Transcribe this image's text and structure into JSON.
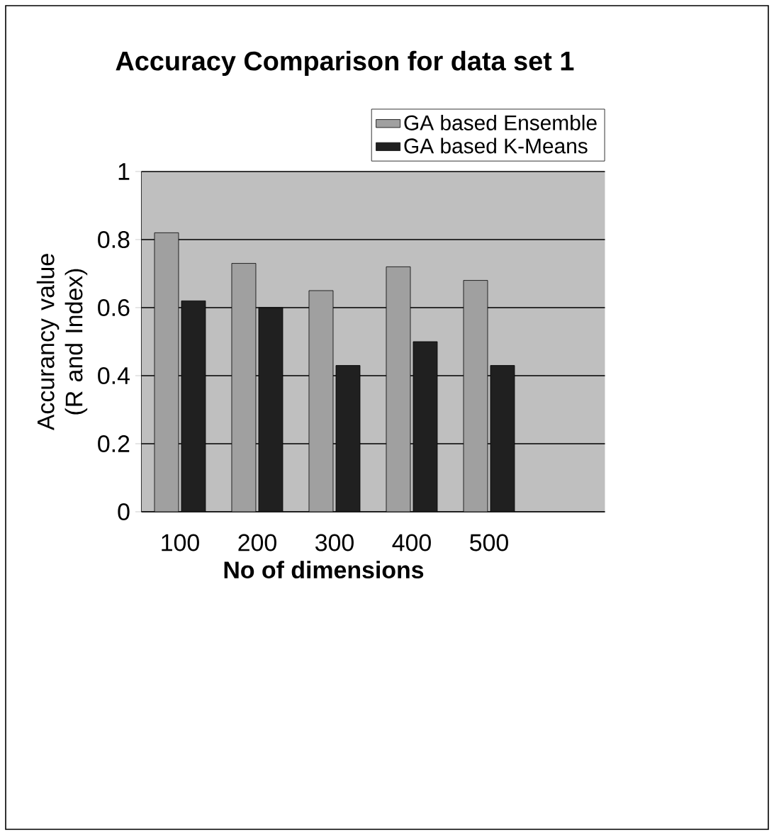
{
  "chart_data": {
    "type": "bar",
    "title": "Accuracy Comparison for data set 1",
    "xlabel": "No of dimensions",
    "ylabel": "Accurancy value (R and Index)",
    "categories": [
      "100",
      "200",
      "300",
      "400",
      "500",
      null
    ],
    "series": [
      {
        "name": "GA based Ensemble",
        "color": "#a0a0a0",
        "values": [
          0.82,
          0.73,
          0.65,
          0.72,
          0.68,
          null
        ]
      },
      {
        "name": "GA based K-Means",
        "color": "#202020",
        "values": [
          0.62,
          0.6,
          0.43,
          0.5,
          0.43,
          null
        ]
      }
    ],
    "ylim": [
      0,
      1
    ],
    "yticks": [
      0,
      0.2,
      0.4,
      0.6,
      0.8,
      1
    ],
    "grid": "y",
    "legend": "top right"
  }
}
